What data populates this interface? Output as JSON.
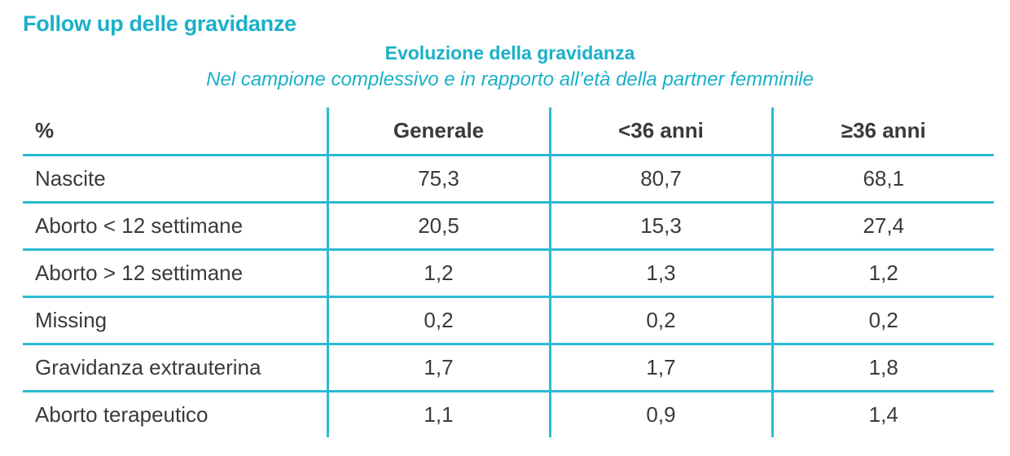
{
  "section_title": "Follow up delle gravidanze",
  "table_title": "Evoluzione della gravidanza",
  "table_subtitle": "Nel campione complessivo e in rapporto all’età della partner femminile",
  "colors": {
    "accent": "#1ab0c9",
    "border": "#2bbad3",
    "text": "#3a3a3a"
  },
  "table": {
    "headers": [
      "%",
      "Generale",
      "<36 anni",
      "≥36 anni"
    ],
    "rows": [
      [
        "Nascite",
        "75,3",
        "80,7",
        "68,1"
      ],
      [
        "Aborto < 12 settimane",
        "20,5",
        "15,3",
        "27,4"
      ],
      [
        "Aborto > 12 settimane",
        "1,2",
        "1,3",
        "1,2"
      ],
      [
        "Missing",
        "0,2",
        "0,2",
        "0,2"
      ],
      [
        "Gravidanza extrauterina",
        "1,7",
        "1,7",
        "1,8"
      ],
      [
        "Aborto terapeutico",
        "1,1",
        "0,9",
        "1,4"
      ]
    ]
  }
}
